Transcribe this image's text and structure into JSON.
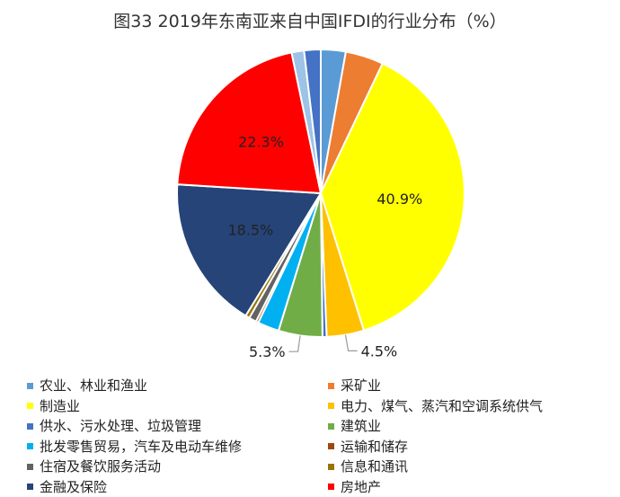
{
  "chart_data": {
    "type": "pie",
    "title": "图33 2019年东南亚来自中国IFDI的行业分布（%）",
    "categories": [
      "农业、林业和渔业",
      "采矿业",
      "制造业",
      "电力、煤气、蒸汽和空调系统供气",
      "供水、污水处理、垃圾管理",
      "建筑业",
      "批发零售贸易，汽车及电动车维修",
      "运输和储存",
      "住宿及餐饮服务活动",
      "信息和通讯",
      "金融及保险",
      "房地产"
    ],
    "values": [
      3.0,
      4.6,
      40.9,
      4.5,
      0.5,
      5.3,
      2.6,
      0.3,
      0.9,
      0.5,
      18.5,
      22.3
    ],
    "data_labels": [
      "",
      "",
      "40.9%",
      "4.5%",
      "",
      "5.3%",
      "",
      "",
      "",
      "",
      "18.5%",
      "22.3%"
    ],
    "colors": [
      "#5B9BD5",
      "#ED7D31",
      "#FFFF00",
      "#FFC000",
      "#4472C4",
      "#70AD47",
      "#00B0F0",
      "#9E480E",
      "#636363",
      "#997300",
      "#264478",
      "#FF0000"
    ],
    "leading_slices": [
      {
        "value": 1.5,
        "color": "#9DC3E6"
      },
      {
        "value": 2.0,
        "color": "#4472C4"
      }
    ],
    "start_angle_deg": 0,
    "direction": "clockwise",
    "legend": "bottom",
    "ylabel": "",
    "xlabel": ""
  }
}
